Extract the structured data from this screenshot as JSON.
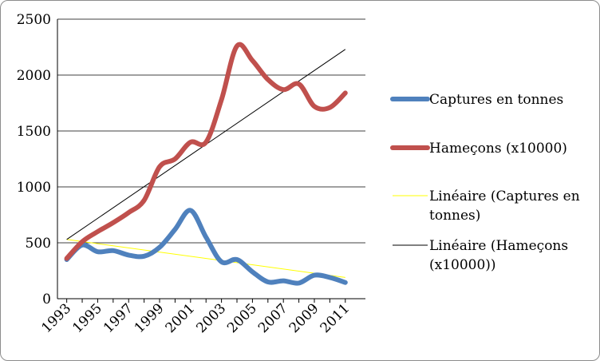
{
  "chart_data": {
    "type": "line",
    "title": "",
    "xlabel": "",
    "ylabel": "",
    "ylim": [
      0,
      2500
    ],
    "yticks": [
      0,
      500,
      1000,
      1500,
      2000,
      2500
    ],
    "x": [
      1993,
      1994,
      1995,
      1996,
      1997,
      1998,
      1999,
      2000,
      2001,
      2002,
      2003,
      2004,
      2005,
      2006,
      2007,
      2008,
      2009,
      2010,
      2011
    ],
    "xtick_labels": [
      "1993",
      "1995",
      "1997",
      "1999",
      "2001",
      "2003",
      "2005",
      "2007",
      "2009",
      "2011"
    ],
    "grid": true,
    "legend_position": "right",
    "series": [
      {
        "name": "Captures en tonnes",
        "color": "#4f81bd",
        "values": [
          350,
          480,
          420,
          430,
          390,
          380,
          460,
          620,
          790,
          550,
          330,
          350,
          240,
          150,
          160,
          140,
          210,
          190,
          145
        ]
      },
      {
        "name": "Hameçons (x10000)",
        "color": "#c0504d",
        "values": [
          360,
          510,
          600,
          680,
          770,
          880,
          1180,
          1250,
          1400,
          1400,
          1780,
          2260,
          2130,
          1960,
          1870,
          1920,
          1720,
          1710,
          1840
        ]
      }
    ],
    "trendlines": [
      {
        "name": "Linéaire (Captures en tonnes)",
        "color": "#ffff00",
        "x": [
          1993,
          2011
        ],
        "values": [
          530,
          190
        ]
      },
      {
        "name": "Linéaire (Hameçons (x10000))",
        "color": "#000000",
        "x": [
          1993,
          2011
        ],
        "values": [
          530,
          2230
        ]
      }
    ],
    "legend": [
      {
        "lines": [
          "Captures en tonnes"
        ],
        "color": "#4f81bd",
        "style": "thick"
      },
      {
        "lines": [
          "Hameçons (x10000)"
        ],
        "color": "#c0504d",
        "style": "thick"
      },
      {
        "lines": [
          "Linéaire (Captures en",
          "tonnes)"
        ],
        "color": "#ffff00",
        "style": "thin"
      },
      {
        "lines": [
          "Linéaire (Hameçons",
          "(x10000))"
        ],
        "color": "#000000",
        "style": "thin"
      }
    ]
  }
}
